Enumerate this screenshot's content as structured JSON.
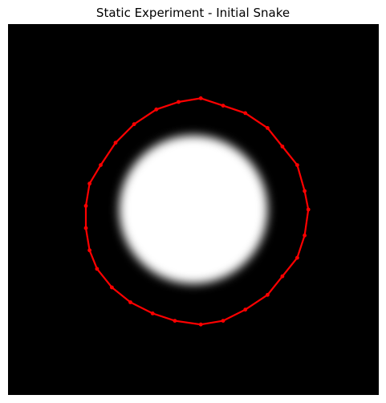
{
  "figure": {
    "title": "Static Experiment - Initial Snake"
  },
  "image": {
    "background_color": "#000000",
    "blob_color": "#ffffff",
    "blob_shape": "blurred-disk",
    "blob_center": [
      0.5,
      0.5
    ],
    "blob_radius_fraction": 0.2
  },
  "snake": {
    "color": "#ff0000",
    "closed": true,
    "points": [
      [
        0.52,
        0.2
      ],
      [
        0.58,
        0.22
      ],
      [
        0.64,
        0.24
      ],
      [
        0.7,
        0.28
      ],
      [
        0.74,
        0.33
      ],
      [
        0.78,
        0.38
      ],
      [
        0.8,
        0.45
      ],
      [
        0.81,
        0.5
      ],
      [
        0.8,
        0.57
      ],
      [
        0.78,
        0.63
      ],
      [
        0.74,
        0.68
      ],
      [
        0.7,
        0.73
      ],
      [
        0.64,
        0.77
      ],
      [
        0.58,
        0.8
      ],
      [
        0.52,
        0.81
      ],
      [
        0.45,
        0.8
      ],
      [
        0.39,
        0.78
      ],
      [
        0.33,
        0.75
      ],
      [
        0.28,
        0.71
      ],
      [
        0.24,
        0.66
      ],
      [
        0.22,
        0.61
      ],
      [
        0.21,
        0.55
      ],
      [
        0.21,
        0.49
      ],
      [
        0.22,
        0.43
      ],
      [
        0.25,
        0.38
      ],
      [
        0.29,
        0.32
      ],
      [
        0.34,
        0.27
      ],
      [
        0.4,
        0.23
      ],
      [
        0.46,
        0.21
      ]
    ]
  }
}
